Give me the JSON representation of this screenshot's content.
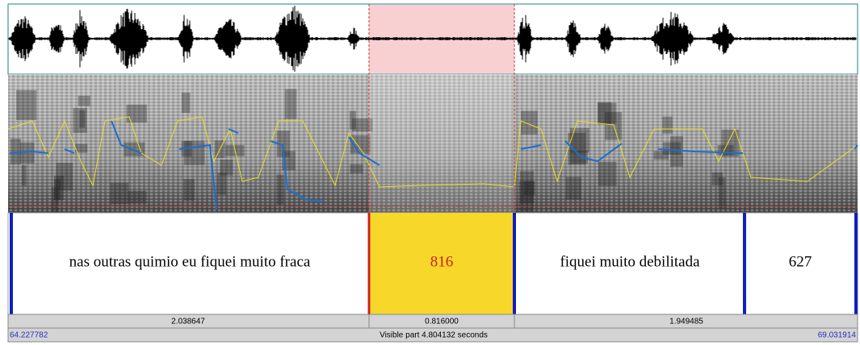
{
  "tier": {
    "intervals": [
      {
        "text": "nas outras quimio eu fiquei muito fraca"
      },
      {
        "text": "816"
      },
      {
        "text": "fiquei muito debilitada"
      },
      {
        "text": "627"
      }
    ]
  },
  "durations": [
    "2.038647",
    "0.816000",
    "1.949485"
  ],
  "footer": {
    "start": "64.227782",
    "visible": "Visible part 4.804132 seconds",
    "end": "69.031914"
  }
}
